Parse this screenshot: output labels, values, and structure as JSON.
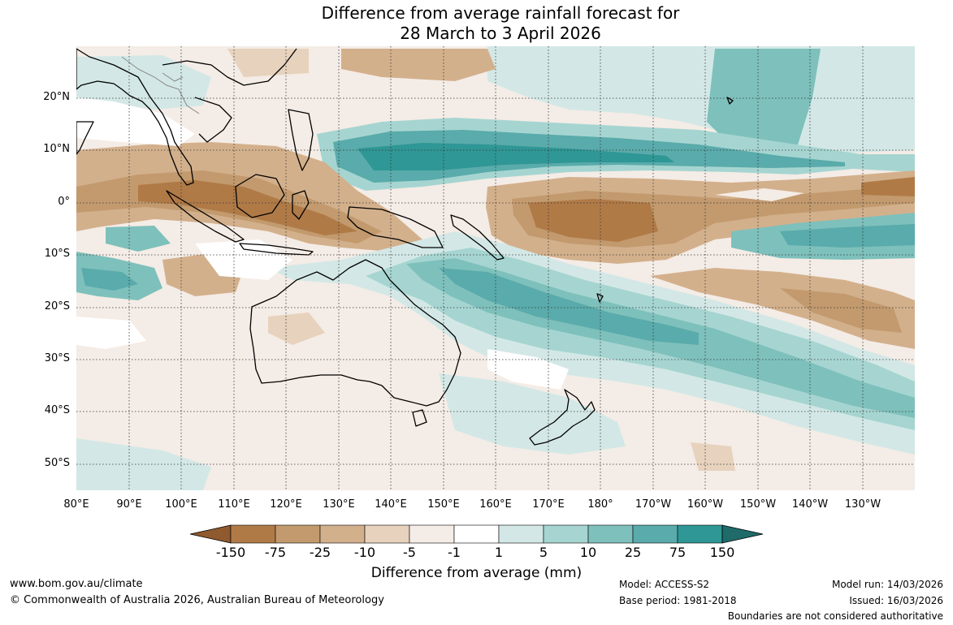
{
  "title": {
    "line1": "Difference from average rainfall forecast for",
    "line2": "28 March to 3 April 2026"
  },
  "map": {
    "latitude_labels": [
      "20°N",
      "10°N",
      "0°",
      "10°S",
      "20°S",
      "30°S",
      "40°S",
      "50°S"
    ],
    "longitude_labels": [
      "80°E",
      "90°E",
      "100°E",
      "110°E",
      "120°E",
      "130°E",
      "140°E",
      "150°E",
      "160°E",
      "170°E",
      "180°",
      "170°W",
      "160°W",
      "150°W",
      "140°W",
      "130°W"
    ]
  },
  "legend": {
    "title": "Difference from average (mm)",
    "tick_labels": [
      "-150",
      "-75",
      "-25",
      "-10",
      "-5",
      "-1",
      "1",
      "5",
      "10",
      "25",
      "75",
      "150"
    ],
    "colors": [
      "#8e5a2e",
      "#b07a47",
      "#c29a6e",
      "#d3b08c",
      "#e7d2bd",
      "#f4ece6",
      "#ffffff",
      "#d3e8e6",
      "#a6d5d1",
      "#7ec0bc",
      "#5aabab",
      "#2f9795",
      "#1f6b6a"
    ]
  },
  "footer": {
    "website": "www.bom.gov.au/climate",
    "copyright": "© Commonwealth of Australia 2026, Australian Bureau of Meteorology",
    "model": "Model: ACCESS-S2",
    "base_period": "Base period: 1981-2018",
    "model_run": "Model run: 14/03/2026",
    "issued": "Issued: 16/03/2026",
    "boundaries": "Boundaries are not considered authoritative"
  }
}
